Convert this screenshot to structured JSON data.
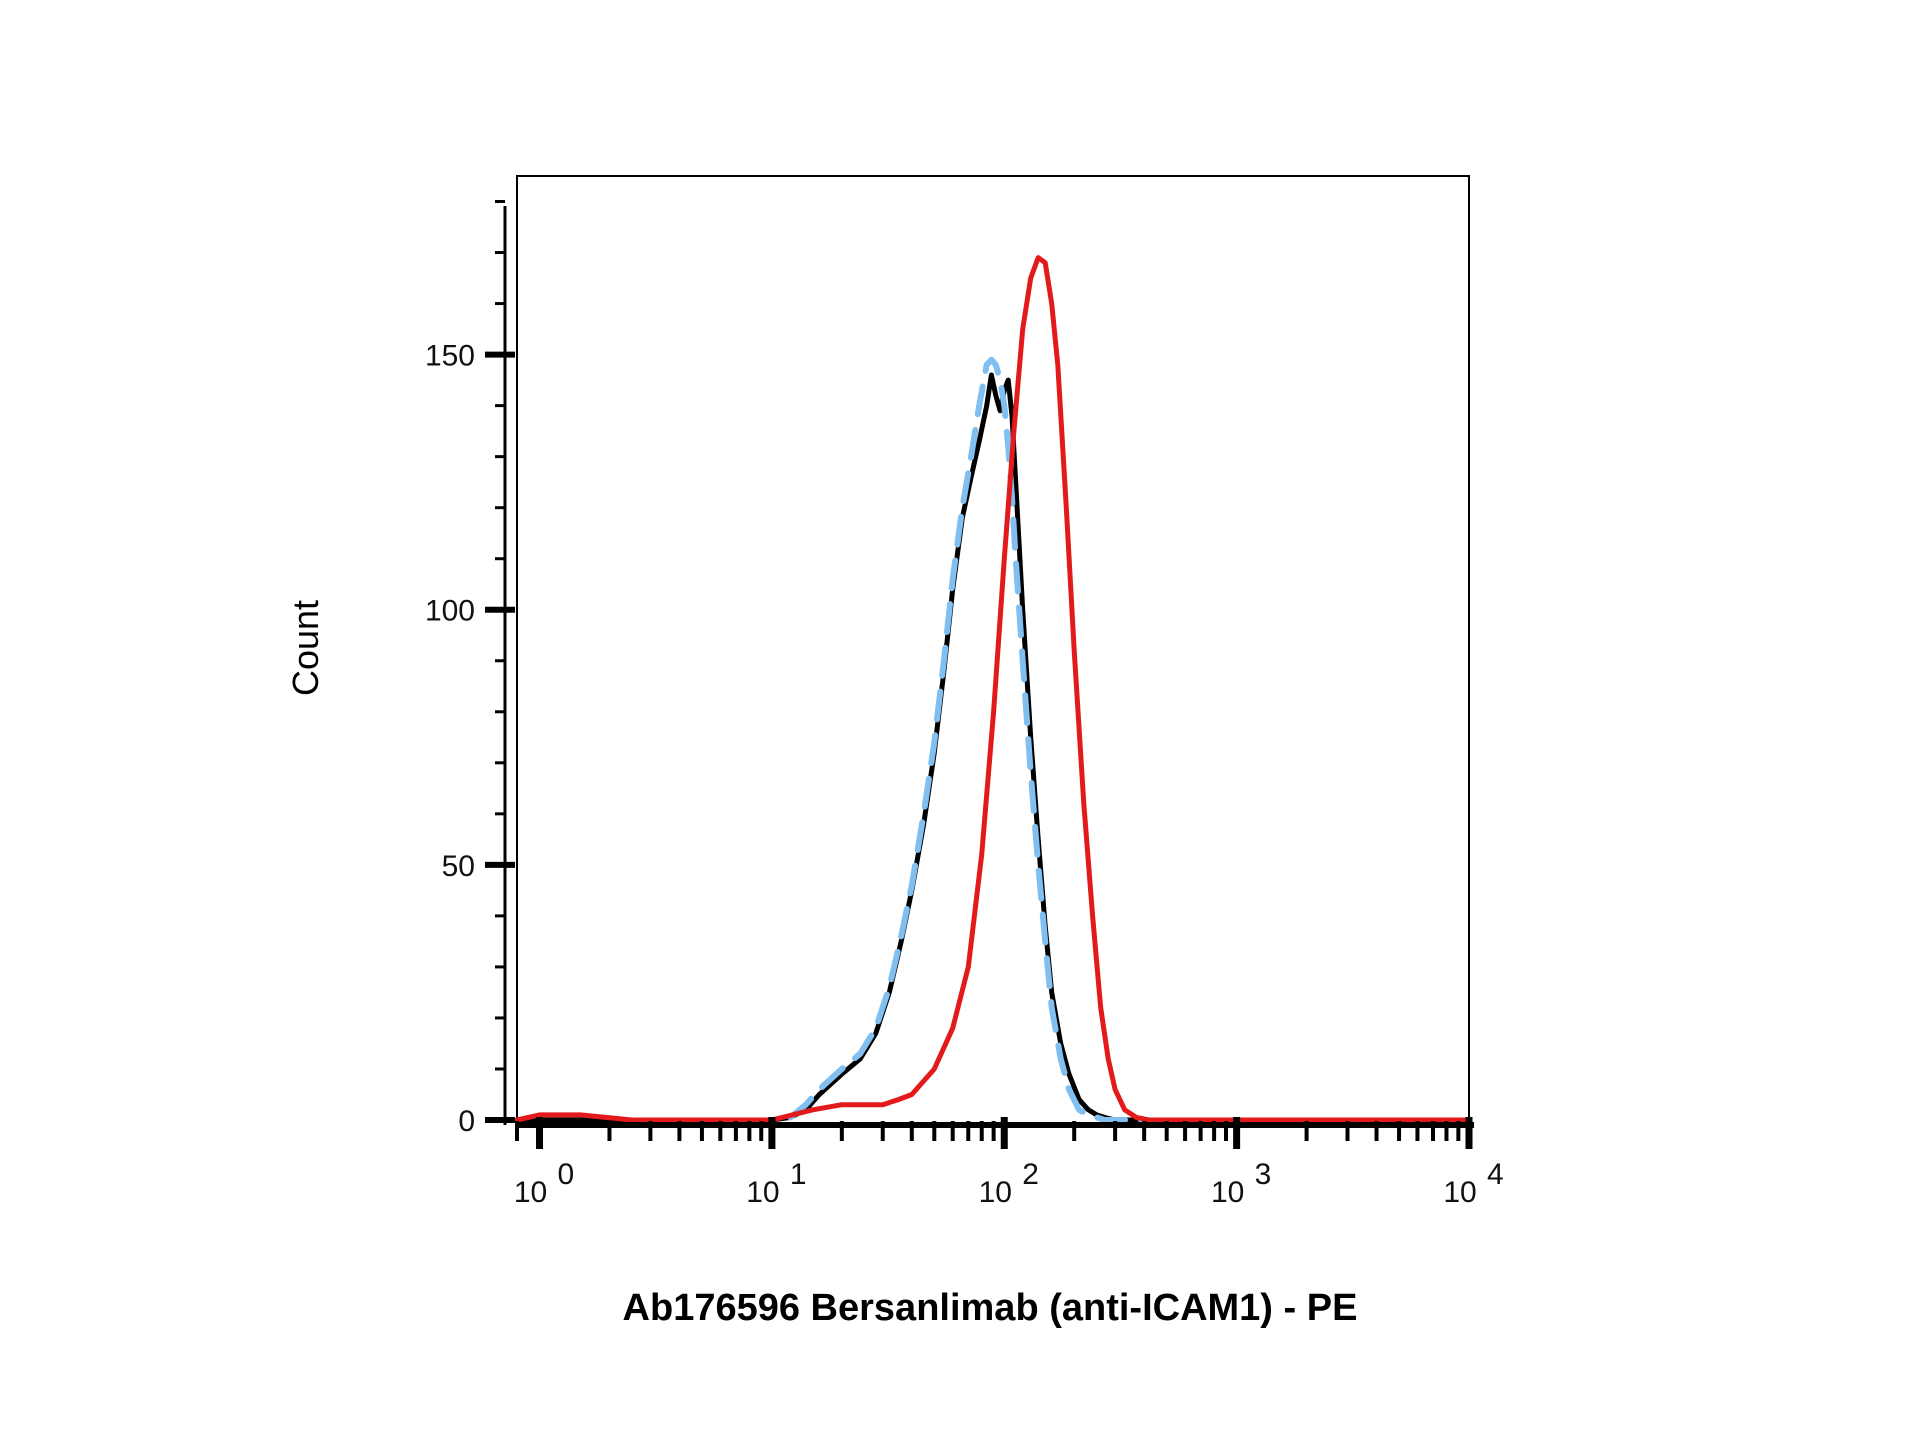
{
  "chart_data": {
    "type": "line",
    "title": "",
    "xlabel": "Ab176596 Bersanlimab (anti-ICAM1) - PE",
    "ylabel": "Count",
    "x_scale": "log",
    "xlim": [
      0.8,
      10000
    ],
    "ylim": [
      0,
      185
    ],
    "y_ticks": [
      {
        "value": 0,
        "label": "0"
      },
      {
        "value": 50,
        "label": "50"
      },
      {
        "value": 100,
        "label": "100"
      },
      {
        "value": 150,
        "label": "150"
      }
    ],
    "x_ticks": [
      {
        "value": 1,
        "base": "10",
        "exp": "0"
      },
      {
        "value": 10,
        "base": "10",
        "exp": "1"
      },
      {
        "value": 100,
        "base": "10",
        "exp": "2"
      },
      {
        "value": 1000,
        "base": "10",
        "exp": "3"
      },
      {
        "value": 10000,
        "base": "10",
        "exp": "4"
      }
    ],
    "grid": false,
    "legend": "none",
    "series": [
      {
        "color": "#000000",
        "dash": false,
        "x": [
          0.8,
          10,
          12,
          14,
          16,
          20,
          24,
          28,
          32,
          36,
          40,
          45,
          50,
          55,
          60,
          66,
          72,
          78,
          84,
          88,
          92,
          96,
          100,
          104,
          108,
          112,
          120,
          130,
          140,
          150,
          160,
          175,
          190,
          210,
          230,
          250,
          270,
          300,
          340,
          400,
          10000
        ],
        "y": [
          0,
          0,
          0.5,
          2,
          5,
          9,
          12,
          17,
          25,
          35,
          45,
          58,
          72,
          88,
          104,
          118,
          126,
          133,
          140,
          146,
          142,
          139,
          143,
          145,
          138,
          125,
          100,
          75,
          55,
          38,
          25,
          15,
          9,
          4,
          2,
          1,
          0.5,
          0,
          0,
          0,
          0
        ]
      },
      {
        "color": "#80bff0",
        "dash": true,
        "x": [
          12,
          14,
          16,
          20,
          24,
          28,
          32,
          36,
          40,
          45,
          50,
          55,
          60,
          66,
          72,
          78,
          84,
          88,
          92,
          96,
          100,
          104,
          108,
          112,
          120,
          130,
          140,
          150,
          160,
          175,
          190,
          210,
          230,
          250,
          270,
          300,
          340,
          400
        ],
        "y": [
          0.5,
          3,
          6,
          10,
          13,
          18,
          26,
          36,
          46,
          60,
          74,
          90,
          106,
          120,
          130,
          140,
          148,
          149,
          148,
          145,
          140,
          132,
          122,
          110,
          90,
          68,
          50,
          35,
          22,
          12,
          6,
          2,
          1,
          0.5,
          0,
          0,
          0,
          0
        ]
      },
      {
        "color": "#e31a1c",
        "dash": false,
        "x": [
          0.8,
          1,
          1.5,
          2.5,
          5,
          10,
          15,
          20,
          25,
          30,
          35,
          40,
          50,
          60,
          70,
          80,
          90,
          100,
          110,
          120,
          130,
          140,
          150,
          160,
          170,
          185,
          200,
          220,
          240,
          260,
          280,
          300,
          330,
          370,
          420,
          500,
          10000
        ],
        "y": [
          0,
          1,
          1,
          0,
          0,
          0,
          2,
          3,
          3,
          3,
          4,
          5,
          10,
          18,
          30,
          52,
          80,
          110,
          135,
          155,
          165,
          169,
          168,
          160,
          148,
          120,
          92,
          62,
          40,
          22,
          12,
          6,
          2,
          0.5,
          0,
          0,
          0
        ]
      }
    ]
  }
}
